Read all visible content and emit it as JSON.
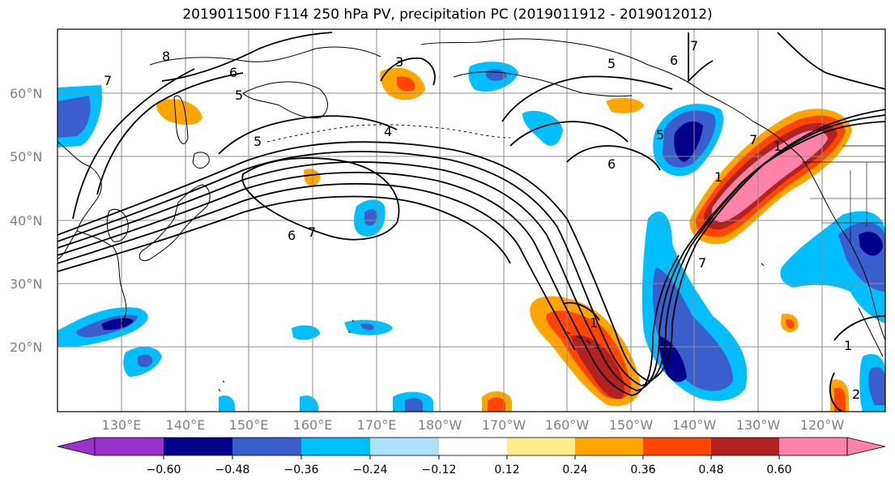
{
  "title": "2019011500 F114 250 hPa PV, precipitation PC (2019011912 - 2019012012)",
  "map": {
    "lat_labels": [
      "60°N",
      "50°N",
      "40°N",
      "30°N",
      "20°N"
    ],
    "lon_labels": [
      "130°E",
      "140°E",
      "150°E",
      "160°E",
      "170°E",
      "180°W",
      "170°W",
      "160°W",
      "150°W",
      "140°W",
      "130°W",
      "120°W"
    ],
    "contour_labels": [
      "8",
      "7",
      "6",
      "5",
      "3",
      "5",
      "4",
      "5",
      "7",
      "6",
      "6",
      "5",
      "6",
      "7",
      "7",
      "1",
      "1",
      "7",
      "1",
      "1",
      "2"
    ]
  },
  "colorbar": {
    "ticks": [
      "−0.60",
      "−0.48",
      "−0.36",
      "−0.24",
      "−0.12",
      "0.12",
      "0.24",
      "0.36",
      "0.48",
      "0.60"
    ],
    "colors": [
      "#9932cc",
      "#00008b",
      "#3a5fcd",
      "#00bfff",
      "#b0e2ff",
      "#ffffff",
      "#ffec8b",
      "#ffa500",
      "#ff4500",
      "#b22222",
      "#ff82ab"
    ]
  }
}
